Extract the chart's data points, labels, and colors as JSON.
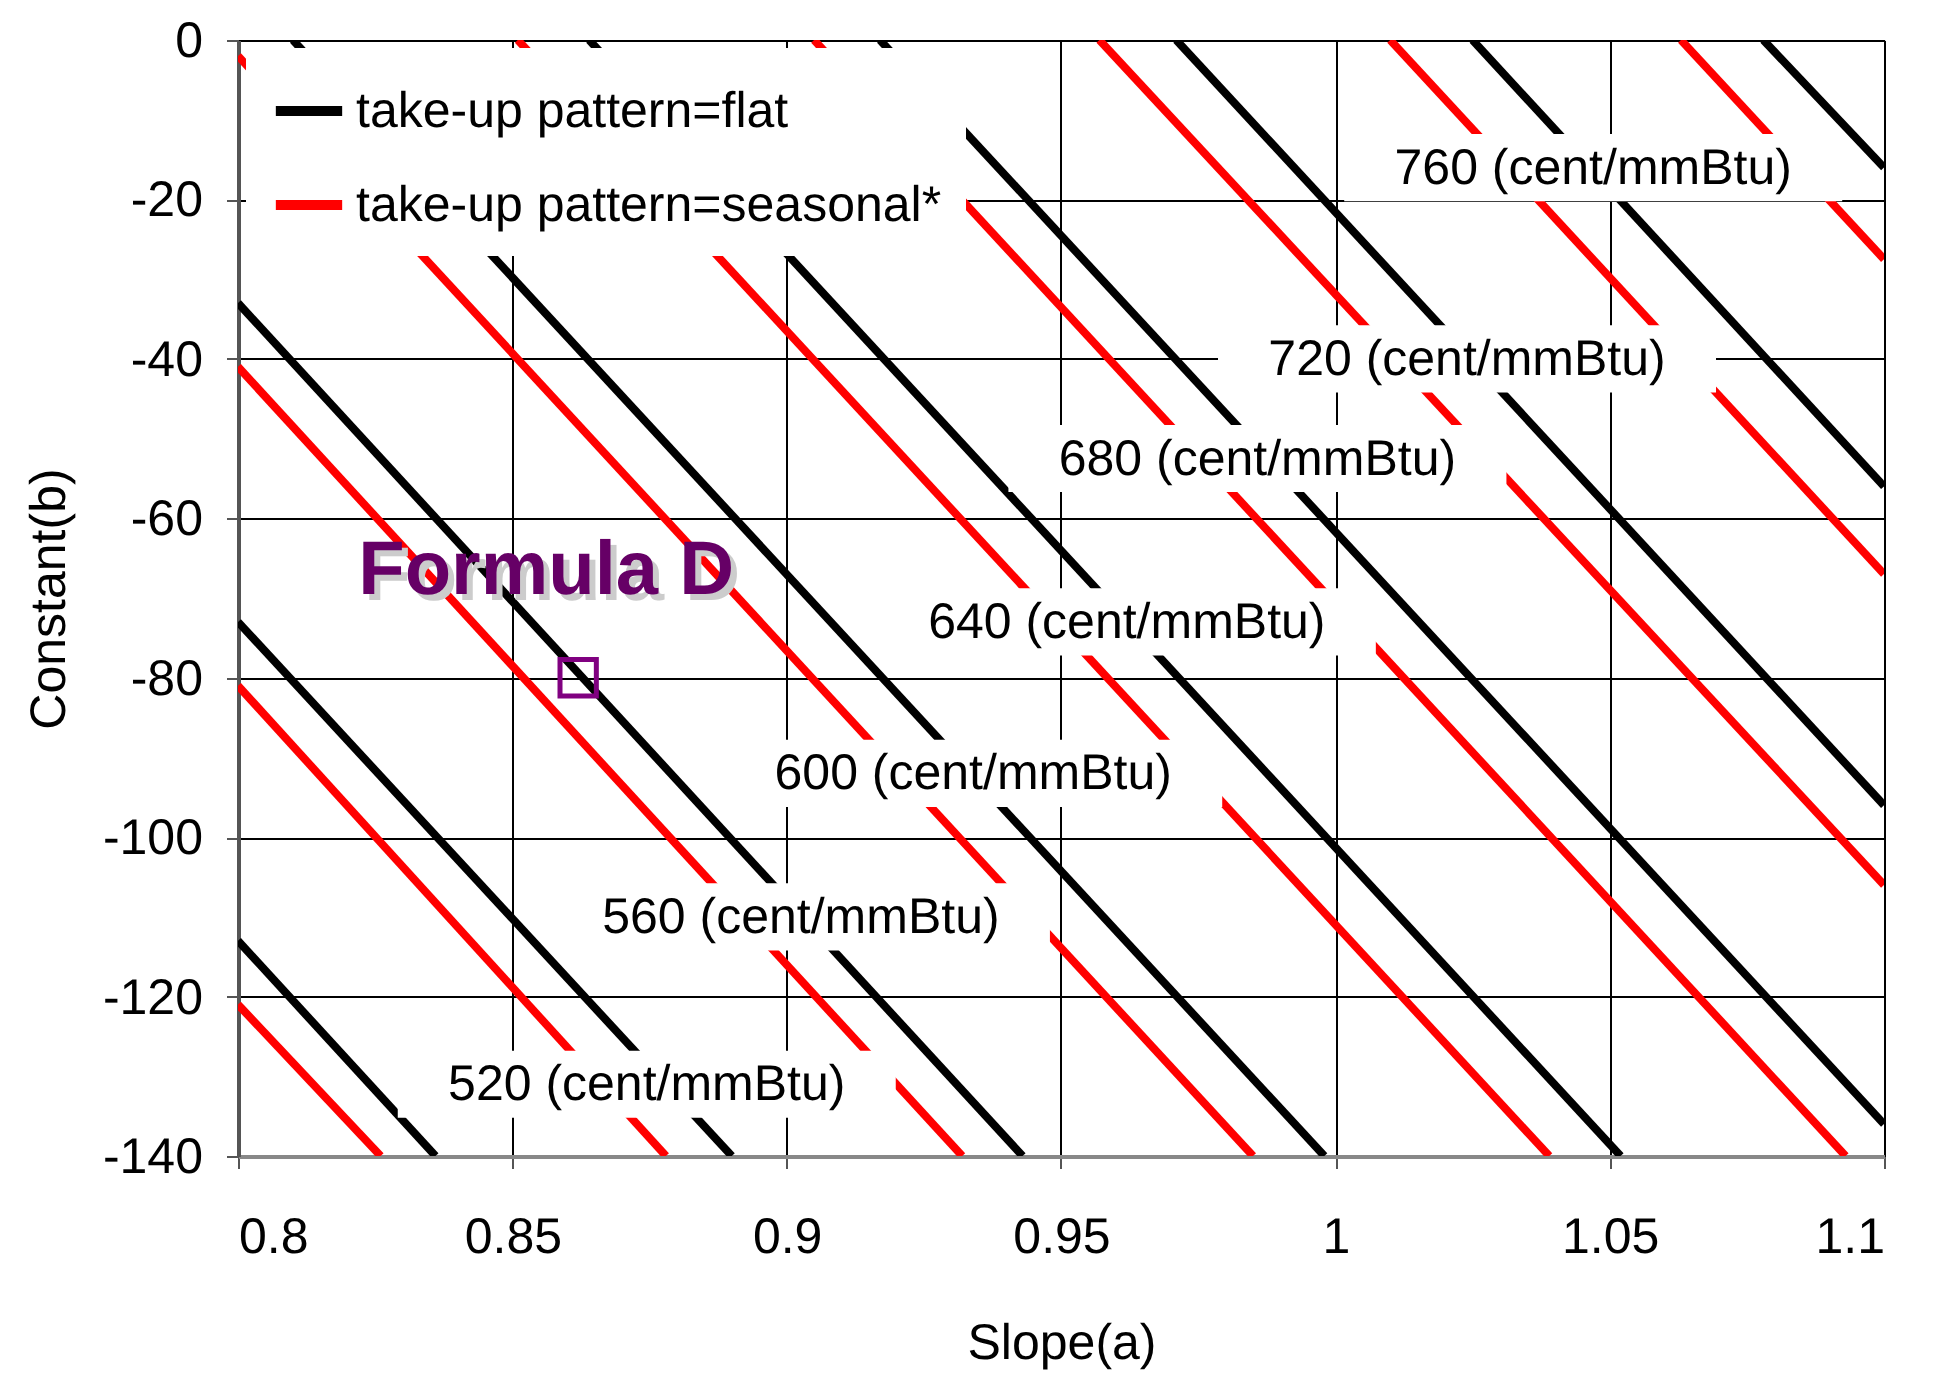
{
  "chart_data": {
    "type": "line",
    "xlabel": "Slope(a)",
    "ylabel": "Constant(b)",
    "xlim": [
      0.8,
      1.1
    ],
    "xticks": [
      0.8,
      0.85,
      0.9,
      0.95,
      1,
      1.05,
      1.1
    ],
    "ylim": [
      -140,
      0
    ],
    "yticks": [
      -140,
      -120,
      -100,
      -80,
      -60,
      -40,
      -20,
      0
    ],
    "grid": true,
    "legend": "top left",
    "line_style": "solid",
    "series": [
      {
        "name": "take-up pattern=flat",
        "color": "#000000",
        "x": [
          0.8,
          0.836
        ],
        "values": [
          -113,
          -140
        ]
      },
      {
        "color": "#000000",
        "x": [
          0.8,
          0.89
        ],
        "values": [
          -73,
          -140
        ]
      },
      {
        "color": "#000000",
        "x": [
          0.8,
          0.943
        ],
        "values": [
          -33,
          -140
        ]
      },
      {
        "color": "#000000",
        "x": [
          0.81,
          0.998
        ],
        "values": [
          0,
          -140
        ]
      },
      {
        "color": "#000000",
        "x": [
          0.864,
          1.052
        ],
        "values": [
          0,
          -140
        ]
      },
      {
        "color": "#000000",
        "x": [
          0.917,
          1.1
        ],
        "values": [
          0,
          -136
        ]
      },
      {
        "color": "#000000",
        "x": [
          0.971,
          1.1
        ],
        "values": [
          0,
          -96
        ]
      },
      {
        "color": "#000000",
        "x": [
          1.025,
          1.1
        ],
        "values": [
          0,
          -56
        ]
      },
      {
        "color": "#000000",
        "x": [
          1.078,
          1.1
        ],
        "values": [
          0,
          -16
        ]
      },
      {
        "name": "take-up pattern=seasonal*",
        "color": "#ff0000",
        "x": [
          0.8,
          0.826
        ],
        "values": [
          -121,
          -140
        ]
      },
      {
        "color": "#ff0000",
        "x": [
          0.8,
          0.878
        ],
        "values": [
          -81,
          -140
        ]
      },
      {
        "color": "#ff0000",
        "x": [
          0.8,
          0.932
        ],
        "values": [
          -41,
          -140
        ]
      },
      {
        "color": "#ff0000",
        "x": [
          0.8,
          0.985
        ],
        "values": [
          -2,
          -140
        ]
      },
      {
        "color": "#ff0000",
        "x": [
          0.851,
          1.039
        ],
        "values": [
          0,
          -140
        ]
      },
      {
        "color": "#ff0000",
        "x": [
          0.905,
          1.093
        ],
        "values": [
          0,
          -140
        ]
      },
      {
        "color": "#ff0000",
        "x": [
          0.957,
          1.1
        ],
        "values": [
          0,
          -106
        ]
      },
      {
        "color": "#ff0000",
        "x": [
          1.01,
          1.1
        ],
        "values": [
          0,
          -67
        ]
      },
      {
        "color": "#ff0000",
        "x": [
          1.063,
          1.1
        ],
        "values": [
          0,
          -27.5
        ]
      },
      {
        "type": "scatter",
        "marker": "square",
        "color": "#800080",
        "x": [
          0.862
        ],
        "values": [
          -80
        ]
      }
    ],
    "annotations": [
      {
        "text": "Formula D",
        "x": 0.862,
        "y": -80
      },
      {
        "text": "520 (cent/mmBtu)",
        "x": 0.8745,
        "y": -131
      },
      {
        "text": "560 (cent/mmBtu)",
        "x": 0.9026,
        "y": -110
      },
      {
        "text": "600 (cent/mmBtu)",
        "x": 0.934,
        "y": -92
      },
      {
        "text": "640 (cent/mmBtu)",
        "x": 0.962,
        "y": -73
      },
      {
        "text": "680 (cent/mmBtu)",
        "x": 0.9858,
        "y": -52.5
      },
      {
        "text": "720 (cent/mmBtu)",
        "x": 1.024,
        "y": -40
      },
      {
        "text": "760 (cent/mmBtu)",
        "x": 1.047,
        "y": -16
      }
    ]
  }
}
